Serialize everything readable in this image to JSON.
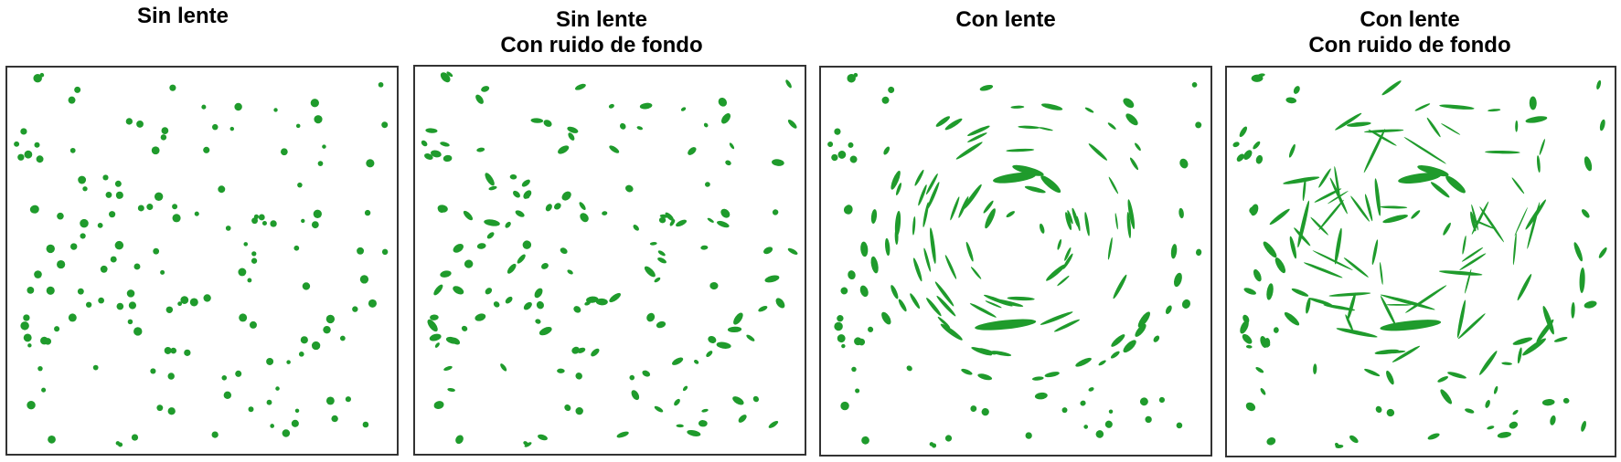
{
  "colors": {
    "galaxy": "#1f9b2c",
    "frame": "#333333",
    "background": "#ffffff"
  },
  "panels": [
    {
      "title_lines": [
        "Sin lente"
      ],
      "lensed": false,
      "noise": false,
      "seed": 11
    },
    {
      "title_lines": [
        "Sin lente",
        "Con ruido de fondo"
      ],
      "lensed": false,
      "noise": true,
      "seed": 11
    },
    {
      "title_lines": [
        "Con lente"
      ],
      "lensed": true,
      "noise": false,
      "seed": 11
    },
    {
      "title_lines": [
        "Con lente",
        "Con ruido de fondo"
      ],
      "lensed": true,
      "noise": true,
      "seed": 11
    }
  ]
}
